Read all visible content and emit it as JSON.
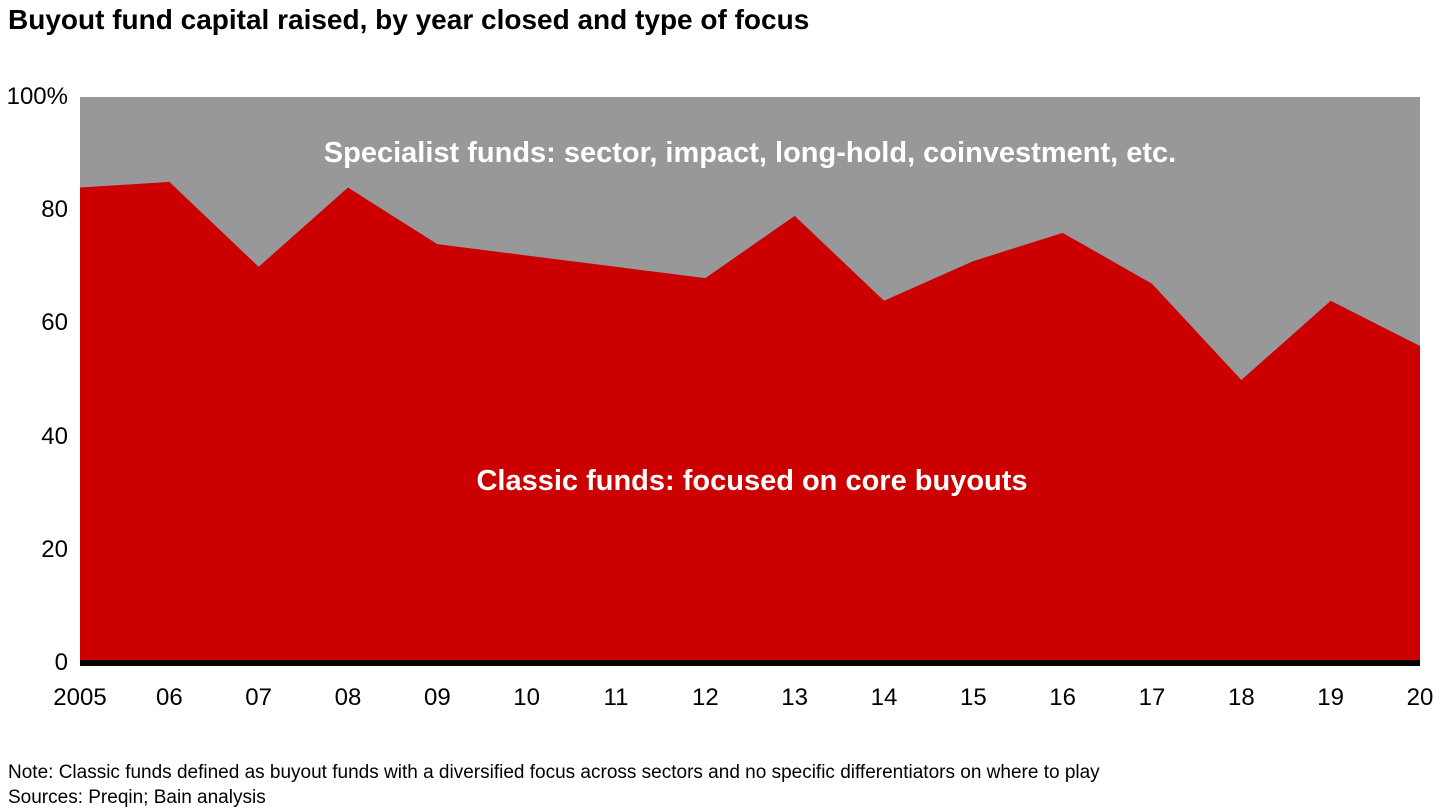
{
  "title": "Buyout fund capital raised, by year closed and type of focus",
  "colors": {
    "classic_red": "#cc0000",
    "specialist_gray": "#98989a",
    "axis_black": "#000000"
  },
  "notes": {
    "note": "Note: Classic funds defined as buyout funds with a diversified focus across sectors and no specific differentiators on where to play",
    "sources": "Sources: Preqin; Bain analysis"
  },
  "chart_data": {
    "type": "area",
    "stacked_percent": true,
    "title": "Buyout fund capital raised, by year closed and type of focus",
    "categories": [
      "2005",
      "06",
      "07",
      "08",
      "09",
      "10",
      "11",
      "12",
      "13",
      "14",
      "15",
      "16",
      "17",
      "18",
      "19",
      "20"
    ],
    "series": [
      {
        "name": "Classic funds: focused on core buyouts",
        "color": "#cc0000",
        "values": [
          84,
          85,
          70,
          84,
          74,
          72,
          70,
          68,
          79,
          64,
          71,
          76,
          67,
          50,
          64,
          56
        ]
      },
      {
        "name": "Specialist funds: sector, impact, long-hold, coinvestment, etc.",
        "color": "#98989a",
        "values": [
          16,
          15,
          30,
          16,
          26,
          28,
          30,
          32,
          21,
          36,
          29,
          24,
          33,
          50,
          36,
          44
        ]
      }
    ],
    "area_labels": {
      "specialist": "Specialist funds: sector, impact, long-hold, coinvestment, etc.",
      "classic": "Classic funds: focused on core buyouts"
    },
    "xlabel": "",
    "ylabel": "",
    "ylim": [
      0,
      100
    ],
    "ytick_values": [
      100,
      80,
      60,
      40,
      20,
      0
    ],
    "ytick_labels": [
      "100%",
      "80",
      "60",
      "40",
      "20",
      "0"
    ],
    "grid": false,
    "legend_position": "labels-inside-areas"
  }
}
